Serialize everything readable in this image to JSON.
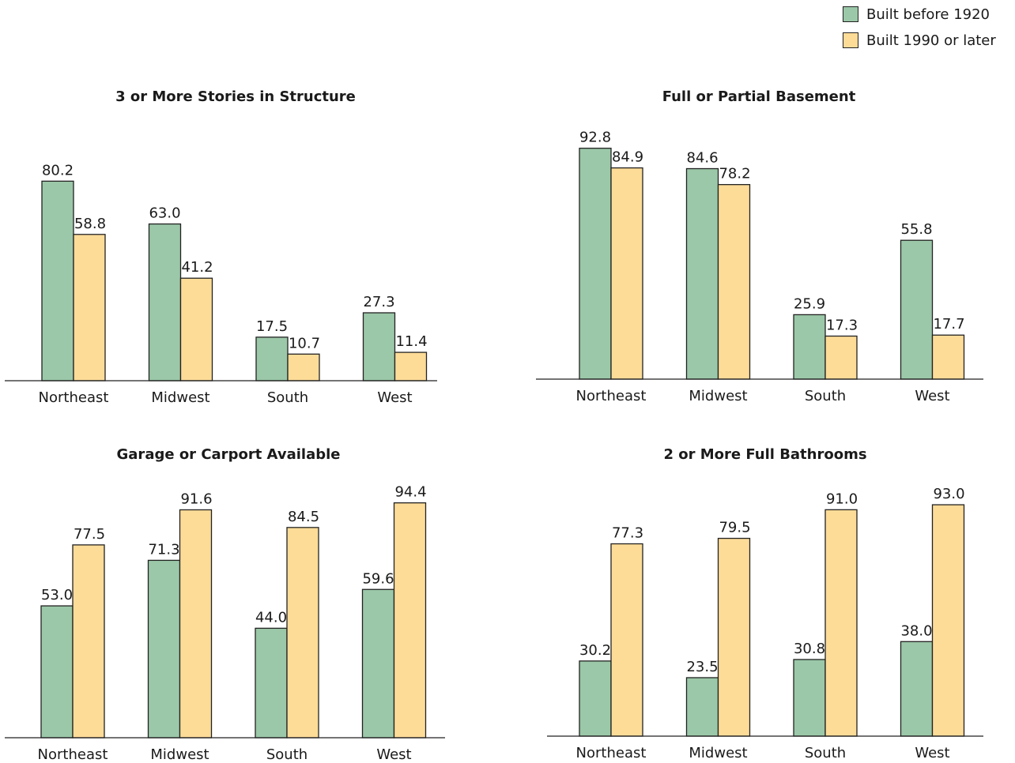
{
  "legend": [
    {
      "label": "Built before 1920",
      "color": "#9bc8a8"
    },
    {
      "label": "Built 1990 or later",
      "color": "#fddc98"
    }
  ],
  "chart_data": [
    {
      "type": "bar",
      "title": "3 or More Stories in Structure",
      "categories": [
        "Northeast",
        "Midwest",
        "South",
        "West"
      ],
      "series": [
        {
          "name": "Built before 1920",
          "values": [
            80.2,
            63.0,
            17.5,
            27.3
          ],
          "labels": [
            "80.2",
            "63.0",
            "17.5",
            "27.3"
          ]
        },
        {
          "name": "Built 1990 or later",
          "values": [
            58.8,
            41.2,
            10.7,
            11.4
          ],
          "labels": [
            "58.8",
            "41.2",
            "10.7",
            "11.4"
          ]
        }
      ]
    },
    {
      "type": "bar",
      "title": "Full or Partial Basement",
      "categories": [
        "Northeast",
        "Midwest",
        "South",
        "West"
      ],
      "series": [
        {
          "name": "Built before 1920",
          "values": [
            92.8,
            84.6,
            25.9,
            55.8
          ],
          "labels": [
            "92.8",
            "84.6",
            "25.9",
            "55.8"
          ]
        },
        {
          "name": "Built 1990 or later",
          "values": [
            84.9,
            78.2,
            17.3,
            17.7
          ],
          "labels": [
            "84.9",
            "78.2",
            "17.3",
            "17.7"
          ]
        }
      ]
    },
    {
      "type": "bar",
      "title": "Garage or Carport Available",
      "categories": [
        "Northeast",
        "Midwest",
        "South",
        "West"
      ],
      "series": [
        {
          "name": "Built before 1920",
          "values": [
            53.0,
            71.3,
            44.0,
            59.6
          ],
          "labels": [
            "53.0",
            "71.3",
            "44.0",
            "59.6"
          ]
        },
        {
          "name": "Built 1990 or later",
          "values": [
            77.5,
            91.6,
            84.5,
            94.4
          ],
          "labels": [
            "77.5",
            "91.6",
            "84.5",
            "94.4"
          ]
        }
      ]
    },
    {
      "type": "bar",
      "title": "2 or More Full Bathrooms",
      "categories": [
        "Northeast",
        "Midwest",
        "South",
        "West"
      ],
      "series": [
        {
          "name": "Built before 1920",
          "values": [
            30.2,
            23.5,
            30.8,
            38.0
          ],
          "labels": [
            "30.2",
            "23.5",
            "30.8",
            "38.0"
          ]
        },
        {
          "name": "Built 1990 or later",
          "values": [
            77.3,
            79.5,
            91.0,
            93.0
          ],
          "labels": [
            "77.3",
            "79.5",
            "91.0",
            "93.0"
          ]
        }
      ]
    }
  ]
}
